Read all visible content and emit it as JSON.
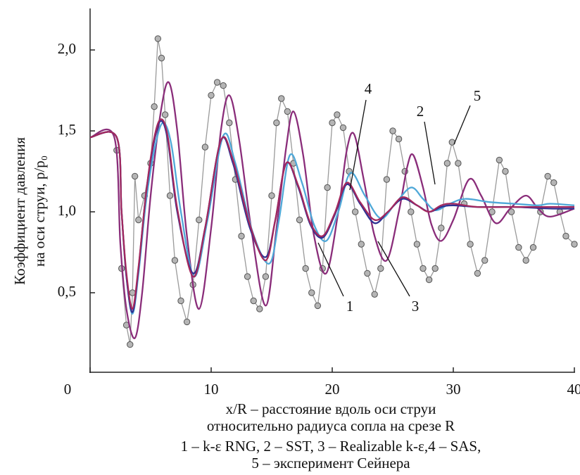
{
  "chart_data": {
    "type": "line",
    "ylabel": [
      "Коэффициент давления",
      "на оси струи, p/p₀"
    ],
    "xlabel": [
      "x/R – расстояние вдоль оси струи",
      "относительно радиуса сопла на срезе R"
    ],
    "caption": [
      "1 – k-ε RNG, 2 – SST, 3 – Realizable k-ε,4 – SAS,",
      "5 – эксперимент Сейнера"
    ],
    "annotations": [
      "1",
      "2",
      "3",
      "4",
      "5"
    ],
    "xlim": [
      0,
      40
    ],
    "xticks": [
      0,
      10,
      20,
      30,
      40
    ],
    "ylim": [
      0,
      2.25
    ],
    "yticks": [
      {
        "value": 0.5,
        "label": "0,5"
      },
      {
        "value": 1.0,
        "label": "1,0"
      },
      {
        "value": 1.5,
        "label": "1,5"
      },
      {
        "value": 2.0,
        "label": "2,0"
      }
    ],
    "series": [
      {
        "color": "#2e3192",
        "x": [
          0,
          2.2,
          2.6,
          3.0,
          3.5,
          4.0,
          4.6,
          5.2,
          5.8,
          6.4,
          7.2,
          8.5,
          9.5,
          10.8,
          11.8,
          13.2,
          14.5,
          15.3,
          16.2,
          17.2,
          18.2,
          19.2,
          20.2,
          21.2,
          22.3,
          23.5,
          24.6,
          25.8,
          27,
          28,
          29,
          30,
          32,
          35,
          38,
          40
        ],
        "values": [
          1.46,
          1.46,
          1.0,
          0.6,
          0.38,
          0.65,
          1.1,
          1.4,
          1.56,
          1.45,
          1.0,
          0.62,
          0.9,
          1.44,
          1.3,
          0.9,
          0.72,
          0.95,
          1.3,
          1.15,
          0.92,
          0.84,
          0.98,
          1.17,
          1.05,
          0.93,
          1.0,
          1.08,
          1.04,
          1.0,
          1.03,
          1.04,
          1.03,
          1.03,
          1.02,
          1.02
        ]
      },
      {
        "color": "#4fa8d8",
        "x": [
          0,
          2.2,
          2.6,
          3.0,
          3.5,
          4.0,
          4.6,
          5.3,
          6.0,
          6.7,
          7.5,
          8.6,
          9.7,
          11.0,
          12.0,
          13.4,
          14.8,
          15.6,
          16.5,
          17.5,
          18.5,
          19.5,
          20.5,
          21.5,
          22.7,
          24.0,
          25.2,
          26.5,
          27.5,
          28.5,
          29.7,
          31,
          33,
          35,
          37,
          38,
          40
        ],
        "values": [
          1.46,
          1.46,
          1.0,
          0.6,
          0.37,
          0.62,
          1.05,
          1.38,
          1.55,
          1.42,
          1.0,
          0.6,
          0.95,
          1.47,
          1.3,
          0.88,
          0.68,
          0.95,
          1.35,
          1.18,
          0.92,
          0.82,
          1.0,
          1.24,
          1.1,
          0.96,
          1.05,
          1.15,
          1.08,
          1.01,
          1.05,
          1.08,
          1.06,
          1.05,
          1.04,
          1.05,
          1.04
        ]
      },
      {
        "color": "#8a2d7a",
        "x": [
          0,
          2.0,
          2.5,
          3.0,
          3.7,
          4.3,
          5.0,
          5.8,
          6.5,
          7.2,
          8.0,
          9.0,
          10.0,
          10.8,
          11.5,
          12.3,
          13.3,
          14.5,
          15.4,
          16.2,
          16.8,
          17.6,
          18.5,
          19.5,
          20.5,
          21.2,
          21.8,
          22.6,
          23.5,
          24.5,
          25.5,
          26.2,
          26.7,
          27.5,
          28.2,
          29.0,
          30.0,
          31.3,
          32.3,
          33.5,
          34.7,
          36.0,
          37.0,
          38.0,
          40
        ],
        "values": [
          1.46,
          1.46,
          0.8,
          0.4,
          0.22,
          0.5,
          1.1,
          1.6,
          1.8,
          1.5,
          0.85,
          0.4,
          0.9,
          1.5,
          1.72,
          1.45,
          0.9,
          0.42,
          0.9,
          1.4,
          1.62,
          1.35,
          0.85,
          0.62,
          1.0,
          1.38,
          1.48,
          1.2,
          0.85,
          0.7,
          1.0,
          1.28,
          1.35,
          1.15,
          0.92,
          0.82,
          0.95,
          1.2,
          1.1,
          0.93,
          1.02,
          1.1,
          1.02,
          0.97,
          1.02
        ]
      },
      {
        "color": "#a3285e",
        "x": [
          0,
          2.2,
          2.6,
          3.0,
          3.5,
          4.0,
          4.6,
          5.2,
          5.8,
          6.4,
          7.2,
          8.5,
          9.5,
          10.8,
          11.8,
          13.2,
          14.5,
          15.3,
          16.2,
          17.2,
          18.2,
          19.2,
          20.2,
          21.2,
          22.3,
          23.5,
          24.6,
          25.8,
          27,
          28,
          29,
          30,
          32,
          35,
          38,
          40
        ],
        "values": [
          1.46,
          1.46,
          1.0,
          0.62,
          0.4,
          0.66,
          1.1,
          1.42,
          1.57,
          1.47,
          1.02,
          0.6,
          0.9,
          1.44,
          1.32,
          0.92,
          0.7,
          0.95,
          1.3,
          1.16,
          0.93,
          0.85,
          0.99,
          1.18,
          1.06,
          0.95,
          1.0,
          1.09,
          1.04,
          1.0,
          1.04,
          1.05,
          1.03,
          1.03,
          1.03,
          1.03
        ]
      },
      {
        "color": "#9a9a9a",
        "marker": "circle",
        "x": [
          2.2,
          2.6,
          3.0,
          3.3,
          3.5,
          3.7,
          4.0,
          4.5,
          5.0,
          5.3,
          5.6,
          5.9,
          6.2,
          6.6,
          7.0,
          7.5,
          8.0,
          8.5,
          9.0,
          9.5,
          10.0,
          10.5,
          11.0,
          11.5,
          12.0,
          12.5,
          13.0,
          13.5,
          14.0,
          14.5,
          15.0,
          15.4,
          15.8,
          16.3,
          16.8,
          17.3,
          17.8,
          18.3,
          18.8,
          19.2,
          19.6,
          20.0,
          20.4,
          20.9,
          21.4,
          21.9,
          22.4,
          22.9,
          23.5,
          24.0,
          24.5,
          25.0,
          25.5,
          26.0,
          26.5,
          27.0,
          27.5,
          28.0,
          28.5,
          29.0,
          29.5,
          29.9,
          30.4,
          30.9,
          31.4,
          32.0,
          32.6,
          33.2,
          33.8,
          34.3,
          34.8,
          35.4,
          36.0,
          36.6,
          37.2,
          37.8,
          38.3,
          38.8,
          39.3,
          40.0
        ],
        "values": [
          1.38,
          0.65,
          0.3,
          0.18,
          0.5,
          1.22,
          0.95,
          1.1,
          1.3,
          1.65,
          2.07,
          1.95,
          1.6,
          1.1,
          0.7,
          0.45,
          0.32,
          0.55,
          0.95,
          1.4,
          1.72,
          1.8,
          1.78,
          1.55,
          1.2,
          0.85,
          0.6,
          0.45,
          0.4,
          0.6,
          1.1,
          1.55,
          1.7,
          1.62,
          1.3,
          0.95,
          0.65,
          0.5,
          0.42,
          0.65,
          1.15,
          1.55,
          1.6,
          1.52,
          1.25,
          1.0,
          0.8,
          0.62,
          0.49,
          0.65,
          1.2,
          1.5,
          1.45,
          1.25,
          1.0,
          0.8,
          0.65,
          0.58,
          0.65,
          0.9,
          1.3,
          1.43,
          1.3,
          1.05,
          0.8,
          0.62,
          0.7,
          1.0,
          1.32,
          1.25,
          1.0,
          0.78,
          0.7,
          0.78,
          1.0,
          1.22,
          1.18,
          1.0,
          0.85,
          0.8
        ]
      }
    ]
  }
}
